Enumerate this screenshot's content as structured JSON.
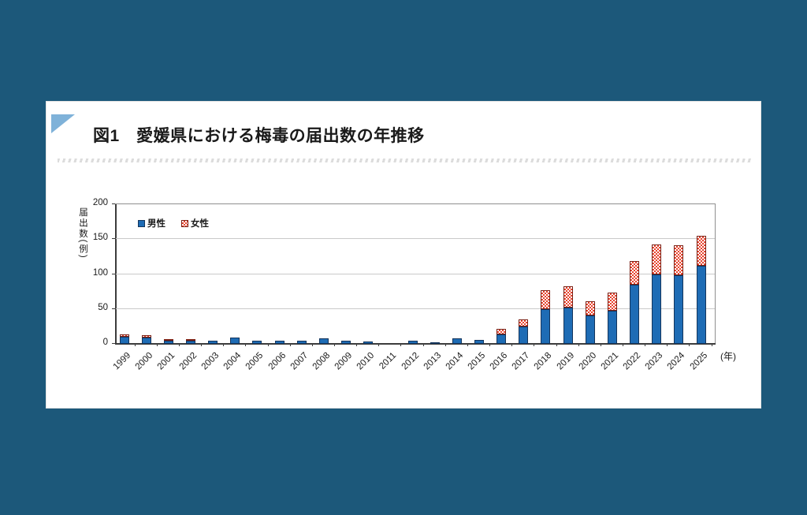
{
  "page": {
    "background_color": "#1c587a"
  },
  "card": {
    "corner_icon": "blue-triangle-icon",
    "accent_color": "#7fb2d9",
    "title": "図1　愛媛県における梅毒の届出数の年推移"
  },
  "chart_data": {
    "type": "bar",
    "stacked": true,
    "title": "図1　愛媛県における梅毒の届出数の年推移",
    "categories": [
      "1999",
      "2000",
      "2001",
      "2002",
      "2003",
      "2004",
      "2005",
      "2006",
      "2007",
      "2008",
      "2009",
      "2010",
      "2011",
      "2012",
      "2013",
      "2014",
      "2015",
      "2016",
      "2017",
      "2018",
      "2019",
      "2020",
      "2021",
      "2022",
      "2023",
      "2024",
      "2025"
    ],
    "series": [
      {
        "name": "男性",
        "color": "#1e6cb5",
        "pattern": "solid",
        "values": [
          10,
          9,
          4,
          5,
          5,
          9,
          4,
          4,
          5,
          8,
          5,
          3,
          0,
          5,
          2,
          8,
          6,
          14,
          25,
          50,
          52,
          41,
          47,
          85,
          100,
          98,
          112
        ]
      },
      {
        "name": "女性",
        "color": "#e8442e",
        "pattern": "checker",
        "values": [
          4,
          3,
          2,
          2,
          0,
          0,
          0,
          0,
          0,
          0,
          0,
          0,
          0,
          0,
          0,
          0,
          0,
          8,
          10,
          27,
          30,
          20,
          27,
          34,
          42,
          43,
          43
        ]
      }
    ],
    "ylabel": "届出数(例)",
    "x_unit_label": "(年)",
    "ylim": [
      0,
      200
    ],
    "yticks": [
      0,
      50,
      100,
      150,
      200
    ],
    "grid": true,
    "legend_position": "top-left-inside"
  }
}
